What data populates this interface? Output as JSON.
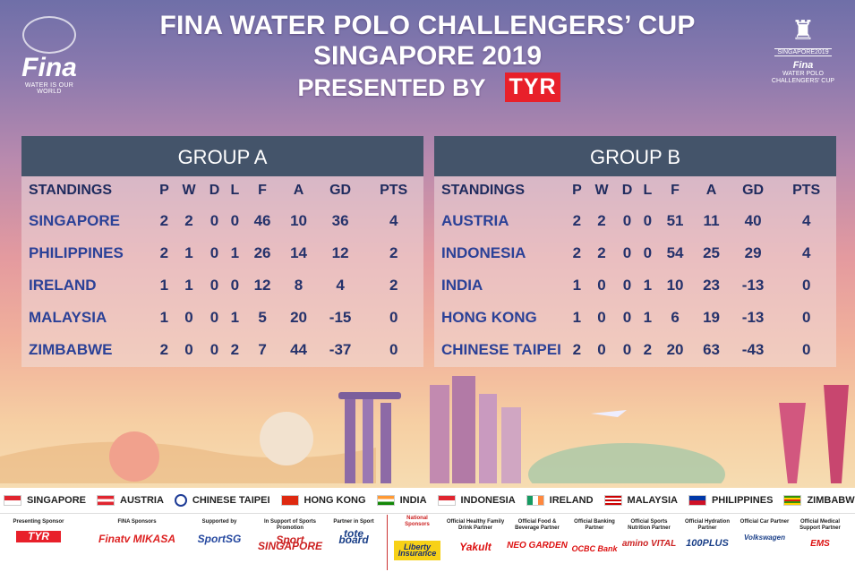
{
  "header": {
    "line1": "FINA WATER POLO CHALLENGERS’ CUP",
    "line2": "SINGAPORE 2019",
    "line3": "PRESENTED BY",
    "tyr": "TYR",
    "fina_logo": "Fina",
    "fina_tagline": "WATER IS OUR WORLD",
    "event_logo_city": "SINGAPORE2019",
    "event_logo_fina": "Fina",
    "event_logo_name": "WATER POLO CHALLENGERS’ CUP"
  },
  "columns": [
    "STANDINGS",
    "P",
    "W",
    "D",
    "L",
    "F",
    "A",
    "GD",
    "PTS"
  ],
  "group_a": {
    "title": "GROUP A",
    "rows": [
      [
        "SINGAPORE",
        "2",
        "2",
        "0",
        "0",
        "46",
        "10",
        "36",
        "4"
      ],
      [
        "PHILIPPINES",
        "2",
        "1",
        "0",
        "1",
        "26",
        "14",
        "12",
        "2"
      ],
      [
        "IRELAND",
        "1",
        "1",
        "0",
        "0",
        "12",
        "8",
        "4",
        "2"
      ],
      [
        "MALAYSIA",
        "1",
        "0",
        "0",
        "1",
        "5",
        "20",
        "-15",
        "0"
      ],
      [
        "ZIMBABWE",
        "2",
        "0",
        "0",
        "2",
        "7",
        "44",
        "-37",
        "0"
      ]
    ]
  },
  "group_b": {
    "title": "GROUP B",
    "rows": [
      [
        "AUSTRIA",
        "2",
        "2",
        "0",
        "0",
        "51",
        "11",
        "40",
        "4"
      ],
      [
        "INDONESIA",
        "2",
        "2",
        "0",
        "0",
        "54",
        "25",
        "29",
        "4"
      ],
      [
        "INDIA",
        "1",
        "0",
        "0",
        "1",
        "10",
        "23",
        "-13",
        "0"
      ],
      [
        "HONG KONG",
        "1",
        "0",
        "0",
        "1",
        "6",
        "19",
        "-13",
        "0"
      ],
      [
        "CHINESE TAIPEI",
        "2",
        "0",
        "0",
        "2",
        "20",
        "63",
        "-43",
        "0"
      ]
    ]
  },
  "flags": [
    {
      "name": "SINGAPORE",
      "color": "#e0252f"
    },
    {
      "name": "AUSTRIA",
      "color": "#e0252f"
    },
    {
      "name": "CHINESE TAIPEI",
      "color": "#1d3b96"
    },
    {
      "name": "HONG KONG",
      "color": "#de2910"
    },
    {
      "name": "INDIA",
      "color": "#ff9933"
    },
    {
      "name": "INDONESIA",
      "color": "#e0252f"
    },
    {
      "name": "IRELAND",
      "color": "#169b62"
    },
    {
      "name": "MALAYSIA",
      "color": "#cc0001"
    },
    {
      "name": "PHILIPPINES",
      "color": "#0038a8"
    },
    {
      "name": "ZIMBABWE",
      "color": "#319208"
    }
  ],
  "sponsors": [
    {
      "label": "Presenting Sponsor",
      "logo": "TYR"
    },
    {
      "label": "FINA Sponsors",
      "logo": "Finatv  MIKASA"
    },
    {
      "label": "Supported by",
      "logo": "SportSG"
    },
    {
      "label": "In Support of Sports Promotion",
      "logo": "Sport SINGAPORE"
    },
    {
      "label": "Partner in Sport",
      "logo": "tote board"
    },
    {
      "label": "National Sponsors",
      "logo": "Liberty Insurance"
    },
    {
      "label": "Official Healthy Family Drink Partner",
      "logo": "Yakult"
    },
    {
      "label": "Official Food & Beverage Partner",
      "logo": "NEO GARDEN"
    },
    {
      "label": "Official Banking Partner",
      "logo": "OCBC Bank"
    },
    {
      "label": "Official Sports Nutrition Partner",
      "logo": "amino VITAL"
    },
    {
      "label": "Official Hydration Partner",
      "logo": "100PLUS"
    },
    {
      "label": "Official Car Partner",
      "logo": "Volkswagen"
    },
    {
      "label": "Official Medical Support Partner",
      "logo": "EMS"
    }
  ]
}
